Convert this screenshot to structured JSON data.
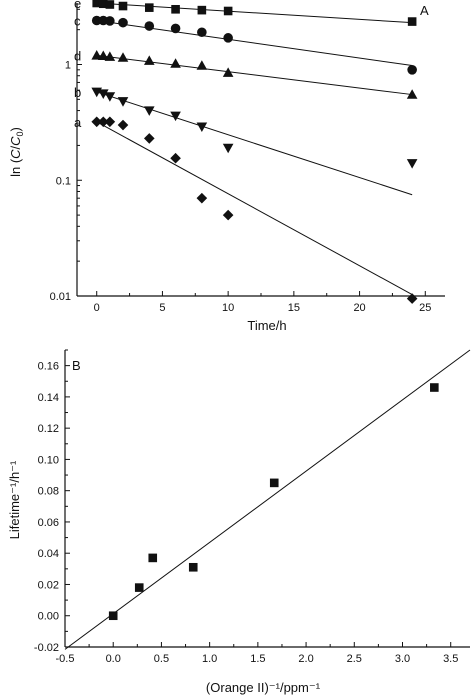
{
  "chart_data": [
    {
      "type": "scatter",
      "panel_label": "A",
      "xlabel": "Time/h",
      "ylabel_prefix": "ln (",
      "ylabel_c": "C",
      "ylabel_slash": "/",
      "ylabel_c0": "C",
      "ylabel_sub": "0",
      "ylabel_suffix": ")",
      "xlim": [
        -1.5,
        26.5
      ],
      "ylim": [
        0.01,
        3.4
      ],
      "yscale": "log",
      "grid": false,
      "xticks": [
        0,
        5,
        10,
        15,
        20,
        25
      ],
      "xtick_labels": [
        "0",
        "5",
        "10",
        "15",
        "20",
        "25"
      ],
      "yticks": [
        0.01,
        0.1,
        1
      ],
      "ytick_labels": [
        "0.01",
        "0.1",
        "1"
      ],
      "series": [
        {
          "label": "a",
          "marker": "diamond",
          "x": [
            0,
            0.5,
            1,
            2,
            4,
            6,
            8,
            10,
            24
          ],
          "y": [
            0.32,
            0.32,
            0.32,
            0.3,
            0.23,
            0.155,
            0.07,
            0.05,
            0.0095
          ],
          "fit": {
            "x": [
              0,
              24
            ],
            "y": [
              0.32,
              0.0103
            ]
          }
        },
        {
          "label": "b",
          "marker": "triangle-down",
          "x": [
            0,
            0.5,
            1,
            2,
            4,
            6,
            8,
            10,
            24
          ],
          "y": [
            0.58,
            0.56,
            0.53,
            0.48,
            0.4,
            0.36,
            0.29,
            0.19,
            0.14
          ],
          "fit": {
            "x": [
              0,
              24
            ],
            "y": [
              0.58,
              0.075
            ]
          }
        },
        {
          "label": "d",
          "marker": "triangle-up",
          "x": [
            0,
            0.5,
            1,
            2,
            4,
            6,
            8,
            10,
            24
          ],
          "y": [
            1.2,
            1.19,
            1.17,
            1.15,
            1.08,
            1.02,
            0.98,
            0.85,
            0.55
          ],
          "fit": {
            "x": [
              0,
              24
            ],
            "y": [
              1.2,
              0.55
            ]
          }
        },
        {
          "label": "c",
          "marker": "circle",
          "x": [
            0,
            0.5,
            1,
            2,
            4,
            6,
            8,
            10,
            24
          ],
          "y": [
            2.4,
            2.4,
            2.38,
            2.3,
            2.15,
            2.05,
            1.9,
            1.7,
            0.9
          ],
          "fit": {
            "x": [
              0,
              24
            ],
            "y": [
              2.4,
              0.98
            ]
          }
        },
        {
          "label": "e",
          "marker": "square",
          "x": [
            0,
            0.5,
            1,
            2,
            4,
            6,
            8,
            10,
            24
          ],
          "y": [
            3.4,
            3.35,
            3.3,
            3.2,
            3.1,
            3.0,
            2.95,
            2.9,
            2.35
          ],
          "fit": {
            "x": [
              0,
              24
            ],
            "y": [
              3.4,
              2.3
            ]
          }
        }
      ]
    },
    {
      "type": "scatter",
      "panel_label": "B",
      "xlabel": "(Orange II)⁻¹/ppm⁻¹",
      "ylabel": "Lifetime⁻¹/h⁻¹",
      "xlim": [
        -0.5,
        3.7
      ],
      "ylim": [
        -0.02,
        0.17
      ],
      "grid": false,
      "xticks": [
        -0.5,
        0.0,
        0.5,
        1.0,
        1.5,
        2.0,
        2.5,
        3.0,
        3.5
      ],
      "xtick_labels": [
        "-0.5",
        "0.0",
        "0.5",
        "1.0",
        "1.5",
        "2.0",
        "2.5",
        "3.0",
        "3.5"
      ],
      "yticks": [
        -0.02,
        0.0,
        0.02,
        0.04,
        0.06,
        0.08,
        0.1,
        0.12,
        0.14,
        0.16
      ],
      "ytick_labels": [
        "-0.02",
        "0.00",
        "0.02",
        "0.04",
        "0.06",
        "0.08",
        "0.10",
        "0.12",
        "0.14",
        "0.16"
      ],
      "series": [
        {
          "marker": "square",
          "x": [
            0.0,
            0.27,
            0.41,
            0.83,
            1.67,
            3.33
          ],
          "y": [
            0.0,
            0.018,
            0.037,
            0.031,
            0.085,
            0.146
          ],
          "fit": {
            "x": [
              -0.5,
              3.7
            ],
            "y": [
              -0.0215,
              0.17
            ]
          }
        }
      ]
    }
  ]
}
